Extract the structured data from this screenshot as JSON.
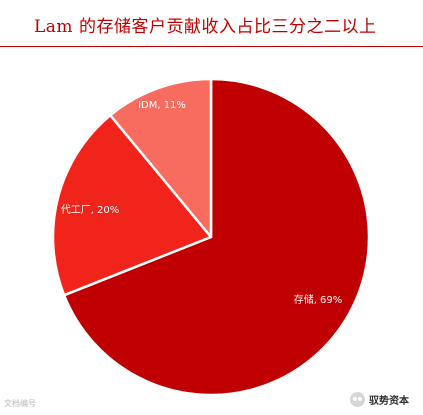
{
  "header": {
    "title": "Lam 的存储客户贡献收入占比三分之二以上"
  },
  "chart_data": {
    "type": "pie",
    "title": "Lam 的存储客户贡献收入占比三分之二以上",
    "slices": [
      {
        "label": "存储",
        "value": 69,
        "display": "存储, 69%",
        "color": "#c00000"
      },
      {
        "label": "代工厂",
        "value": 20,
        "display": "代工厂, 20%",
        "color": "#f0241a"
      },
      {
        "label": "IDM",
        "value": 11,
        "display": "IDM, 11%",
        "color": "#f86c5f"
      }
    ],
    "start": "12 o'clock",
    "direction": "clockwise"
  },
  "footer": {
    "left_text": "文档编号",
    "watermark_text": "驭势资本",
    "watermark_icon": "wechat-icon"
  }
}
